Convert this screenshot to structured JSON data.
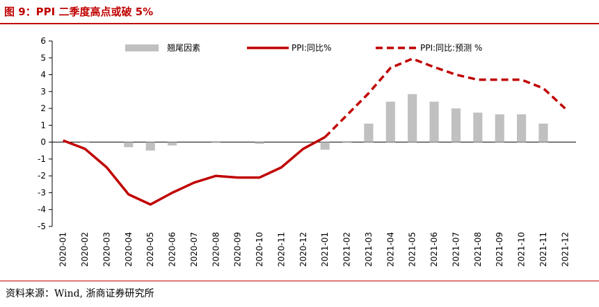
{
  "header": {
    "title": "图 9：PPI 二季度高点或破 5%"
  },
  "footer": {
    "source": "资料来源：Wind, 浙商证券研究所"
  },
  "colors": {
    "accent": "#c00000",
    "bar": "#c0c0c0",
    "axis": "#000000"
  },
  "chart_data": {
    "type": "bar+line",
    "title": "",
    "xlabel": "",
    "ylabel": "",
    "ylim": [
      -5,
      6
    ],
    "yticks": [
      -5,
      -4,
      -3,
      -2,
      -1,
      0,
      1,
      2,
      3,
      4,
      5,
      6
    ],
    "categories": [
      "2020-01",
      "2020-02",
      "2020-03",
      "2020-04",
      "2020-05",
      "2020-06",
      "2020-07",
      "2020-08",
      "2020-09",
      "2020-10",
      "2020-11",
      "2020-12",
      "2021-01",
      "2021-02",
      "2021-03",
      "2021-04",
      "2021-05",
      "2021-06",
      "2021-07",
      "2021-08",
      "2021-09",
      "2021-10",
      "2021-11",
      "2021-12"
    ],
    "legend": [
      "翘尾因素",
      "PPI:同比%",
      "PPI:同比:预测 %"
    ],
    "series": [
      {
        "name": "翘尾因素",
        "kind": "bar",
        "color": "#c0c0c0",
        "values": [
          0,
          0.05,
          0,
          -0.3,
          -0.5,
          -0.2,
          0,
          0.05,
          0,
          -0.1,
          0,
          0,
          -0.45,
          0.05,
          1.1,
          2.4,
          2.85,
          2.4,
          2.0,
          1.75,
          1.65,
          1.65,
          1.1,
          0
        ]
      },
      {
        "name": "PPI:同比%",
        "kind": "line",
        "style": "solid",
        "color": "#c00000",
        "values": [
          0.1,
          -0.4,
          -1.5,
          -3.1,
          -3.7,
          -3.0,
          -2.4,
          -2.0,
          -2.1,
          -2.1,
          -1.5,
          -0.4,
          0.3,
          null,
          null,
          null,
          null,
          null,
          null,
          null,
          null,
          null,
          null,
          null
        ]
      },
      {
        "name": "PPI:同比:预测 %",
        "kind": "line",
        "style": "dashed",
        "color": "#c00000",
        "values": [
          null,
          null,
          null,
          null,
          null,
          null,
          null,
          null,
          null,
          null,
          null,
          null,
          0.3,
          1.6,
          2.9,
          4.4,
          4.95,
          4.45,
          4.0,
          3.7,
          3.7,
          3.7,
          3.2,
          2.0
        ]
      }
    ]
  }
}
